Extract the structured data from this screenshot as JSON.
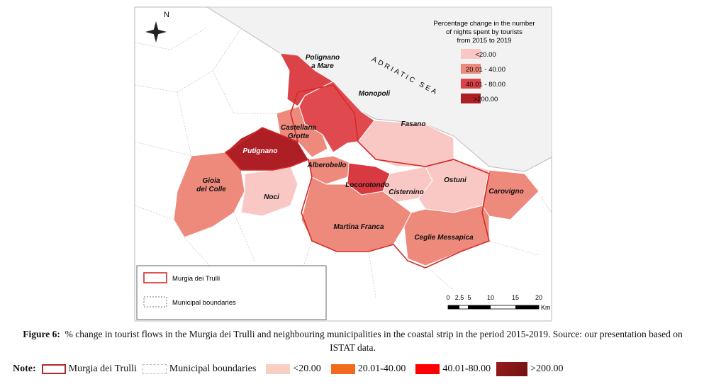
{
  "map": {
    "north_label": "N",
    "sea_label": "ADRIATIC SEA",
    "legend": {
      "title": [
        "Percentage change in the number",
        "of nights spent by tourists",
        "from 2015 to 2019"
      ],
      "items": [
        "<20.00",
        "20.01 - 40.00",
        "40.01 - 80.00",
        ">200.00"
      ]
    },
    "places": [
      [
        "Polignano",
        "a Mare"
      ],
      [
        "Monopoli"
      ],
      [
        "Fasano"
      ],
      [
        "Castellana",
        "Grotte"
      ],
      [
        "Putignano"
      ],
      [
        "Alberobello"
      ],
      [
        "Gioia",
        "del Colle"
      ],
      [
        "Noci"
      ],
      [
        "Locorotondo"
      ],
      [
        "Cisternino"
      ],
      [
        "Ostuni"
      ],
      [
        "Carovigno"
      ],
      [
        "Martina Franca"
      ],
      [
        "Ceglie Messapica"
      ]
    ],
    "boundary_legend": [
      "Murgia dei Trulli",
      "Municipal boundaries"
    ],
    "scale": {
      "labels": [
        "0",
        "2,5",
        "5",
        "10",
        "15",
        "20"
      ],
      "unit": "Km"
    }
  },
  "caption": {
    "label": "Figure 6:",
    "text": "% change in tourist flows in the Murgia dei Trulli and neighbouring municipalities in the coastal strip in the period 2015-2019. Source: our presentation based on ISTAT data."
  },
  "note": {
    "label": "Note:",
    "items": [
      "Murgia dei Trulli",
      "Municipal boundaries",
      "<20.00",
      "20.01-40.00",
      "40.01-80.00",
      ">200.00"
    ]
  }
}
